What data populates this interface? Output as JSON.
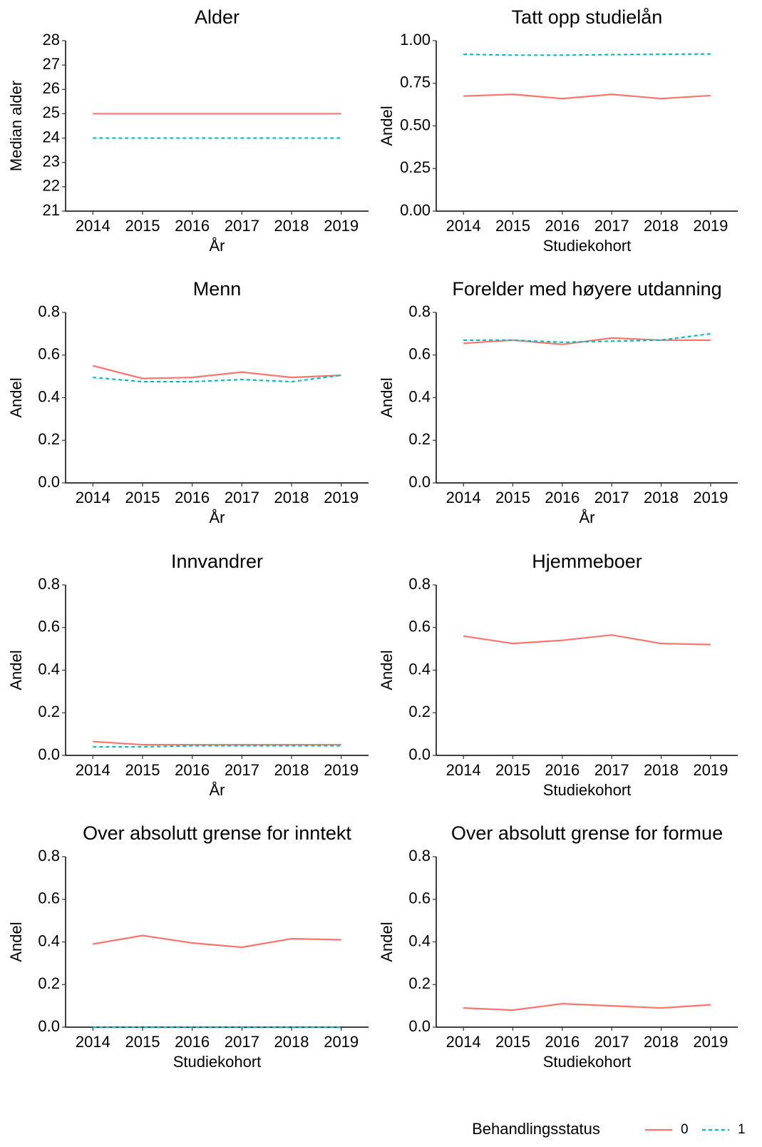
{
  "chart_data": [
    {
      "type": "line",
      "title": "Alder",
      "x_label": "År",
      "y_label": "Median alder",
      "x": [
        2014,
        2015,
        2016,
        2017,
        2018,
        2019
      ],
      "xlim": [
        2013.45,
        2019.55
      ],
      "xticks": [
        2014,
        2015,
        2016,
        2017,
        2018,
        2019
      ],
      "ylim": [
        21,
        28
      ],
      "yticks": [
        21,
        22,
        23,
        24,
        25,
        26,
        27,
        28
      ],
      "series": [
        {
          "name": "0",
          "color": "#F8766D",
          "linestyle": "solid",
          "values": [
            25,
            25,
            25,
            25,
            25,
            25
          ]
        },
        {
          "name": "1",
          "color": "#00BFC4",
          "linestyle": "dashed",
          "values": [
            24,
            24,
            24,
            24,
            24,
            24
          ]
        }
      ]
    },
    {
      "type": "line",
      "title": "Tatt opp studielån",
      "x_label": "Studiekohort",
      "y_label": "Andel",
      "x": [
        2014,
        2015,
        2016,
        2017,
        2018,
        2019
      ],
      "xlim": [
        2013.45,
        2019.55
      ],
      "xticks": [
        2014,
        2015,
        2016,
        2017,
        2018,
        2019
      ],
      "ylim": [
        0,
        1
      ],
      "yticks": [
        {
          "value": 0,
          "label": "0.00"
        },
        0.25,
        {
          "value": 0.5,
          "label": "0.50"
        },
        0.75,
        {
          "value": 1,
          "label": "1.00"
        }
      ],
      "series": [
        {
          "name": "0",
          "color": "#F8766D",
          "linestyle": "solid",
          "values": [
            0.675,
            0.685,
            0.66,
            0.685,
            0.66,
            0.678
          ]
        },
        {
          "name": "1",
          "color": "#00BFC4",
          "linestyle": "dashed",
          "values": [
            0.92,
            0.915,
            0.915,
            0.918,
            0.92,
            0.922
          ]
        }
      ]
    },
    {
      "type": "line",
      "title": "Menn",
      "x_label": "År",
      "y_label": "Andel",
      "x": [
        2014,
        2015,
        2016,
        2017,
        2018,
        2019
      ],
      "xlim": [
        2013.45,
        2019.55
      ],
      "xticks": [
        2014,
        2015,
        2016,
        2017,
        2018,
        2019
      ],
      "ylim": [
        0,
        0.8
      ],
      "yticks": [
        {
          "value": 0,
          "label": "0.0"
        },
        0.2,
        0.4,
        0.6,
        0.8
      ],
      "series": [
        {
          "name": "0",
          "color": "#F8766D",
          "linestyle": "solid",
          "values": [
            0.55,
            0.49,
            0.495,
            0.52,
            0.495,
            0.505
          ]
        },
        {
          "name": "1",
          "color": "#00BFC4",
          "linestyle": "dashed",
          "values": [
            0.495,
            0.475,
            0.475,
            0.485,
            0.475,
            0.505
          ]
        }
      ]
    },
    {
      "type": "line",
      "title": "Forelder med høyere utdanning",
      "x_label": "År",
      "y_label": "Andel",
      "x": [
        2014,
        2015,
        2016,
        2017,
        2018,
        2019
      ],
      "xlim": [
        2013.45,
        2019.55
      ],
      "xticks": [
        2014,
        2015,
        2016,
        2017,
        2018,
        2019
      ],
      "ylim": [
        0,
        0.8
      ],
      "yticks": [
        {
          "value": 0,
          "label": "0.0"
        },
        0.2,
        0.4,
        0.6,
        0.8
      ],
      "series": [
        {
          "name": "0",
          "color": "#F8766D",
          "linestyle": "solid",
          "values": [
            0.655,
            0.67,
            0.65,
            0.68,
            0.67,
            0.67
          ]
        },
        {
          "name": "1",
          "color": "#00BFC4",
          "linestyle": "dashed",
          "values": [
            0.67,
            0.67,
            0.66,
            0.665,
            0.67,
            0.7
          ]
        }
      ]
    },
    {
      "type": "line",
      "title": "Innvandrer",
      "x_label": "År",
      "y_label": "Andel",
      "x": [
        2014,
        2015,
        2016,
        2017,
        2018,
        2019
      ],
      "xlim": [
        2013.45,
        2019.55
      ],
      "xticks": [
        2014,
        2015,
        2016,
        2017,
        2018,
        2019
      ],
      "ylim": [
        0,
        0.8
      ],
      "yticks": [
        {
          "value": 0,
          "label": "0.0"
        },
        0.2,
        0.4,
        0.6,
        0.8
      ],
      "series": [
        {
          "name": "0",
          "color": "#F8766D",
          "linestyle": "solid",
          "values": [
            0.065,
            0.05,
            0.05,
            0.05,
            0.05,
            0.05
          ]
        },
        {
          "name": "1",
          "color": "#00BFC4",
          "linestyle": "dashed",
          "values": [
            0.04,
            0.04,
            0.045,
            0.045,
            0.045,
            0.045
          ]
        }
      ]
    },
    {
      "type": "line",
      "title": "Hjemmeboer",
      "x_label": "Studiekohort",
      "y_label": "Andel",
      "x": [
        2014,
        2015,
        2016,
        2017,
        2018,
        2019
      ],
      "xlim": [
        2013.45,
        2019.55
      ],
      "xticks": [
        2014,
        2015,
        2016,
        2017,
        2018,
        2019
      ],
      "ylim": [
        0,
        0.8
      ],
      "yticks": [
        {
          "value": 0,
          "label": "0.0"
        },
        0.2,
        0.4,
        0.6,
        0.8
      ],
      "series": [
        {
          "name": "0",
          "color": "#F8766D",
          "linestyle": "solid",
          "values": [
            0.56,
            0.525,
            0.54,
            0.565,
            0.525,
            0.52
          ]
        }
      ]
    },
    {
      "type": "line",
      "title": "Over absolutt grense for inntekt",
      "x_label": "Studiekohort",
      "y_label": "Andel",
      "x": [
        2014,
        2015,
        2016,
        2017,
        2018,
        2019
      ],
      "xlim": [
        2013.45,
        2019.55
      ],
      "xticks": [
        2014,
        2015,
        2016,
        2017,
        2018,
        2019
      ],
      "ylim": [
        0,
        0.8
      ],
      "yticks": [
        {
          "value": 0,
          "label": "0.0"
        },
        0.2,
        0.4,
        0.6,
        0.8
      ],
      "series": [
        {
          "name": "0",
          "color": "#F8766D",
          "linestyle": "solid",
          "values": [
            0.39,
            0.43,
            0.395,
            0.375,
            0.415,
            0.41
          ]
        },
        {
          "name": "1",
          "color": "#00BFC4",
          "linestyle": "dashed",
          "values": [
            0,
            0,
            0,
            0,
            0,
            0
          ]
        }
      ]
    },
    {
      "type": "line",
      "title": "Over absolutt grense for formue",
      "x_label": "Studiekohort",
      "y_label": "Andel",
      "x": [
        2014,
        2015,
        2016,
        2017,
        2018,
        2019
      ],
      "xlim": [
        2013.45,
        2019.55
      ],
      "xticks": [
        2014,
        2015,
        2016,
        2017,
        2018,
        2019
      ],
      "ylim": [
        0,
        0.8
      ],
      "yticks": [
        {
          "value": 0,
          "label": "0.0"
        },
        0.2,
        0.4,
        0.6,
        0.8
      ],
      "series": [
        {
          "name": "0",
          "color": "#F8766D",
          "linestyle": "solid",
          "values": [
            0.09,
            0.08,
            0.11,
            0.1,
            0.09,
            0.105
          ]
        }
      ]
    }
  ],
  "legend_title": "Behandlingsstatus"
}
